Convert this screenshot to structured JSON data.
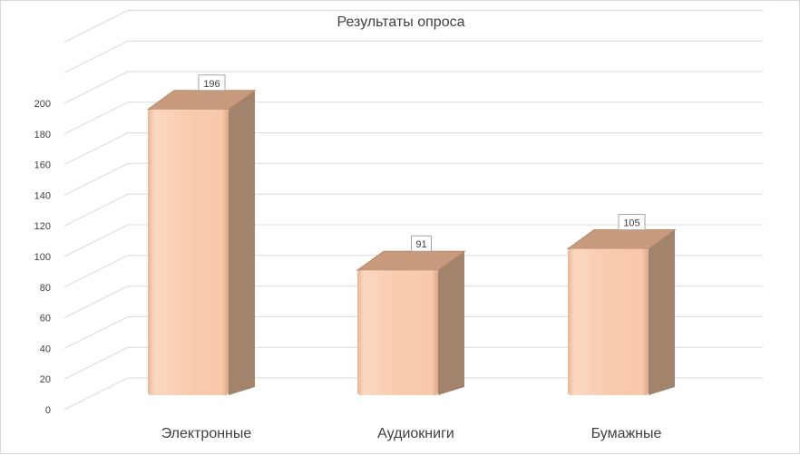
{
  "chart_data": {
    "type": "bar",
    "title": "Результаты опроса",
    "categories": [
      "Электронные",
      "Аудиокниги",
      "Бумажные"
    ],
    "values": [
      196,
      91,
      105
    ],
    "data_labels": [
      "196",
      "91",
      "105"
    ],
    "ylim": [
      0,
      240
    ],
    "y_ticks": [
      0,
      20,
      40,
      60,
      80,
      100,
      120,
      140,
      160,
      180,
      200
    ],
    "grid": true,
    "legend": "none",
    "style": "3d-column",
    "colors": {
      "bar_front": "#f8cbad",
      "bar_top": "#c89a7e",
      "bar_side": "#a2836b",
      "grid": "#d9d9d9",
      "text": "#404040"
    }
  }
}
